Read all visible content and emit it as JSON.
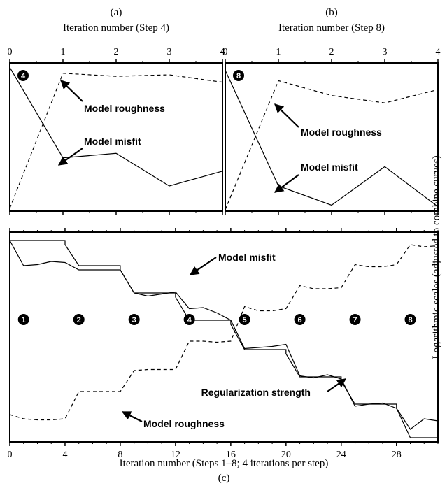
{
  "figure": {
    "right_label": "Logarithmic scales (adjusted to combine curves)"
  },
  "chart_data": [
    {
      "id": "a",
      "type": "line",
      "panel_letter": "(a)",
      "xlabel": "Iteration number (Step 4)",
      "xlim": [
        0,
        4
      ],
      "xticks": [
        0,
        1,
        2,
        3,
        4
      ],
      "badge": "4",
      "series": [
        {
          "name": "Model misfit",
          "style": "solid",
          "x": [
            0,
            1,
            2,
            3,
            4
          ],
          "y": [
            0.97,
            0.36,
            0.39,
            0.17,
            0.27
          ]
        },
        {
          "name": "Model roughness",
          "style": "dashed",
          "x": [
            0,
            1,
            2,
            3,
            4
          ],
          "y": [
            0.02,
            0.93,
            0.91,
            0.92,
            0.87
          ]
        }
      ],
      "annotations": [
        "Model roughness",
        "Model misfit"
      ]
    },
    {
      "id": "b",
      "type": "line",
      "panel_letter": "(b)",
      "xlabel": "Iteration number (Step 8)",
      "xlim": [
        0,
        4
      ],
      "xticks": [
        0,
        1,
        2,
        3,
        4
      ],
      "badge": "8",
      "series": [
        {
          "name": "Model misfit",
          "style": "solid",
          "x": [
            0,
            1,
            2,
            3,
            4
          ],
          "y": [
            0.95,
            0.17,
            0.04,
            0.3,
            0.03
          ]
        },
        {
          "name": "Model roughness",
          "style": "dashed",
          "x": [
            0,
            1,
            2,
            3,
            4
          ],
          "y": [
            0.01,
            0.88,
            0.78,
            0.73,
            0.82
          ]
        }
      ],
      "annotations": [
        "Model roughness",
        "Model misfit"
      ]
    },
    {
      "id": "c",
      "type": "line",
      "panel_letter": "(c)",
      "xlabel": "Iteration number (Steps 1–8; 4 iterations per step)",
      "xlim": [
        0,
        31
      ],
      "xticks": [
        0,
        4,
        8,
        12,
        16,
        20,
        24,
        28
      ],
      "step_badges": [
        "1",
        "2",
        "3",
        "4",
        "5",
        "6",
        "7",
        "8"
      ],
      "step_badge_x": [
        1,
        5,
        9,
        13,
        17,
        21,
        25,
        29
      ],
      "series": [
        {
          "name": "Model misfit",
          "style": "solid",
          "x": [
            0,
            1,
            2,
            3,
            4,
            5,
            6,
            7,
            8,
            9,
            10,
            11,
            12,
            13,
            14,
            15,
            16,
            17,
            18,
            19,
            20,
            21,
            22,
            23,
            24,
            25,
            26,
            27,
            28,
            29,
            30,
            31
          ],
          "y": [
            0.96,
            0.84,
            0.845,
            0.86,
            0.855,
            0.82,
            0.82,
            0.82,
            0.82,
            0.71,
            0.695,
            0.705,
            0.715,
            0.635,
            0.64,
            0.615,
            0.58,
            0.445,
            0.45,
            0.455,
            0.465,
            0.315,
            0.305,
            0.32,
            0.3,
            0.17,
            0.18,
            0.185,
            0.16,
            0.06,
            0.11,
            0.1
          ]
        },
        {
          "name": "Regularization strength",
          "style": "solid",
          "x": [
            0,
            4,
            4,
            5,
            8,
            8,
            9,
            12,
            12,
            13,
            16,
            16,
            17,
            20,
            20,
            21,
            24,
            24,
            25,
            28,
            28,
            29,
            31
          ],
          "y": [
            0.96,
            0.96,
            0.94,
            0.84,
            0.84,
            0.82,
            0.71,
            0.71,
            0.69,
            0.58,
            0.58,
            0.56,
            0.44,
            0.44,
            0.42,
            0.31,
            0.31,
            0.29,
            0.18,
            0.18,
            0.16,
            0.02,
            0.02
          ]
        },
        {
          "name": "Model roughness",
          "style": "dashed",
          "x": [
            0,
            1,
            2,
            3,
            4,
            5,
            6,
            7,
            8,
            9,
            10,
            11,
            12,
            13,
            14,
            15,
            16,
            17,
            18,
            19,
            20,
            21,
            22,
            23,
            24,
            25,
            26,
            27,
            28,
            29,
            30,
            31
          ],
          "y": [
            0.13,
            0.11,
            0.105,
            0.105,
            0.11,
            0.24,
            0.24,
            0.24,
            0.24,
            0.34,
            0.345,
            0.345,
            0.345,
            0.48,
            0.48,
            0.475,
            0.48,
            0.645,
            0.625,
            0.625,
            0.635,
            0.745,
            0.73,
            0.73,
            0.735,
            0.845,
            0.835,
            0.835,
            0.845,
            0.94,
            0.93,
            0.935
          ]
        }
      ],
      "annotations": [
        "Model misfit",
        "Regularization strength",
        "Model roughness"
      ]
    }
  ]
}
